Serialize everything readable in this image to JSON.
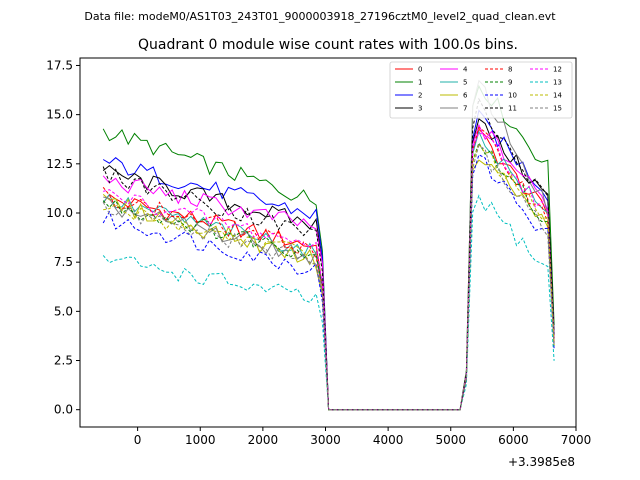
{
  "header": {
    "data_file": "Data file: modeM0/AS1T03_243T01_9000003918_27196cztM0_level2_quad_clean.evt"
  },
  "chart_data": {
    "type": "line",
    "title": "Quadrant 0 module wise count rates with 100.0s bins.",
    "xlabel": "",
    "ylabel": "",
    "x_offset_label": "+3.3985e8",
    "xlim": [
      -920,
      7000
    ],
    "ylim": [
      -0.88,
      17.88
    ],
    "x_ticks": [
      0,
      1000,
      2000,
      3000,
      4000,
      5000,
      6000,
      7000
    ],
    "x_tick_labels": [
      "0",
      "1000",
      "2000",
      "3000",
      "4000",
      "5000",
      "6000",
      "7000"
    ],
    "y_ticks": [
      0.0,
      2.5,
      5.0,
      7.5,
      10.0,
      12.5,
      15.0,
      17.5
    ],
    "y_tick_labels": [
      "0.0",
      "2.5",
      "5.0",
      "7.5",
      "10.0",
      "12.5",
      "15.0",
      "17.5"
    ],
    "grid": false,
    "legend_placement": "top-right",
    "x": [
      -550,
      -450,
      -350,
      -250,
      -150,
      -50,
      50,
      150,
      250,
      350,
      450,
      550,
      650,
      750,
      850,
      950,
      1050,
      1150,
      1250,
      1350,
      1450,
      1550,
      1650,
      1750,
      1850,
      1950,
      2050,
      2150,
      2250,
      2350,
      2450,
      2550,
      2650,
      2750,
      2850,
      2950,
      3050,
      5150,
      5250,
      5350,
      5450,
      5550,
      5650,
      5750,
      5850,
      5950,
      6050,
      6150,
      6250,
      6350,
      6450,
      6550,
      6650
    ],
    "series": [
      {
        "name": "0",
        "color": "#ff0000",
        "dash": "solid",
        "high": 10.8,
        "low": 8.3,
        "peak": 14.0,
        "end": 9.9
      },
      {
        "name": "1",
        "color": "#008000",
        "dash": "solid",
        "high": 14.2,
        "low": 10.6,
        "peak": 16.6,
        "end": 12.3
      },
      {
        "name": "2",
        "color": "#0000ff",
        "dash": "solid",
        "high": 12.6,
        "low": 9.9,
        "peak": 14.8,
        "end": 11.0
      },
      {
        "name": "3",
        "color": "#000000",
        "dash": "solid",
        "high": 12.1,
        "low": 9.4,
        "peak": 14.6,
        "end": 10.8
      },
      {
        "name": "4",
        "color": "#ff00ff",
        "dash": "solid",
        "high": 11.7,
        "low": 9.3,
        "peak": 14.5,
        "end": 10.4
      },
      {
        "name": "5",
        "color": "#20b2aa",
        "dash": "solid",
        "high": 10.7,
        "low": 8.0,
        "peak": 14.0,
        "end": 9.8
      },
      {
        "name": "6",
        "color": "#bbbb00",
        "dash": "solid",
        "high": 10.6,
        "low": 7.6,
        "peak": 13.1,
        "end": 9.3
      },
      {
        "name": "7",
        "color": "#808080",
        "dash": "solid",
        "high": 10.4,
        "low": 7.7,
        "peak": 16.6,
        "end": 10.2
      },
      {
        "name": "8",
        "color": "#ff0000",
        "dash": "dashed",
        "high": 10.9,
        "low": 8.1,
        "peak": 14.2,
        "end": 9.7
      },
      {
        "name": "9",
        "color": "#008000",
        "dash": "dashed",
        "high": 10.5,
        "low": 7.9,
        "peak": 13.6,
        "end": 9.5
      },
      {
        "name": "10",
        "color": "#0000ff",
        "dash": "dashed",
        "high": 9.7,
        "low": 7.1,
        "peak": 12.8,
        "end": 8.8
      },
      {
        "name": "11",
        "color": "#000000",
        "dash": "dashed",
        "high": 12.0,
        "low": 8.9,
        "peak": 15.4,
        "end": 10.5
      },
      {
        "name": "12",
        "color": "#ff00ff",
        "dash": "dashed",
        "high": 11.0,
        "low": 8.3,
        "peak": 14.3,
        "end": 9.9
      },
      {
        "name": "13",
        "color": "#00bfbf",
        "dash": "dashed",
        "high": 7.7,
        "low": 5.6,
        "peak": 10.8,
        "end": 7.1
      },
      {
        "name": "14",
        "color": "#bbbb00",
        "dash": "dashed",
        "high": 10.3,
        "low": 7.8,
        "peak": 13.5,
        "end": 9.4
      },
      {
        "name": "15",
        "color": "#808080",
        "dash": "dashed",
        "high": 10.2,
        "low": 7.5,
        "peak": 13.2,
        "end": 9.2
      }
    ],
    "notes": "Each module series: count rate declines from 'high' (x=-550) to 'low' (x~2850), drops to 0 between x=3050 and x=5150, rises to 'peak' near x=5350, then declines to 'end' near x=6550 before falling at x=6650."
  }
}
